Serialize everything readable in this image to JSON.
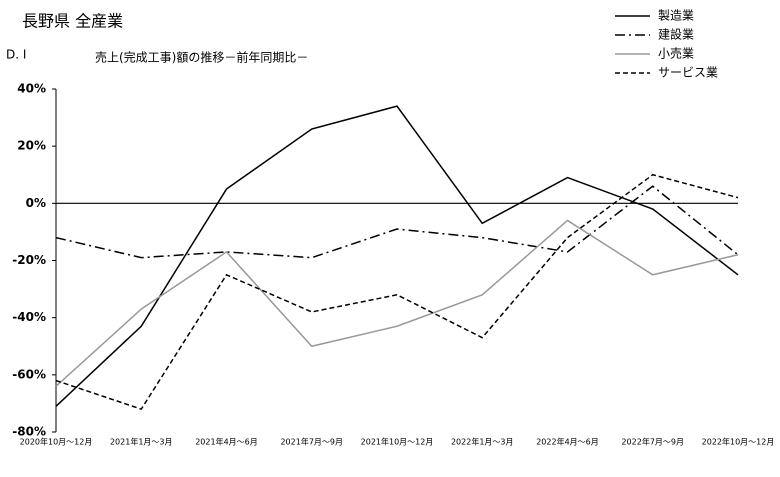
{
  "chart_data": {
    "type": "line",
    "title": "長野県 全産業",
    "y_label": "D. I",
    "subtitle": "売上(完成工事)額の推移－前年同期比－",
    "categories": [
      "2020年10月～12月",
      "2021年1月～3月",
      "2021年4月～6月",
      "2021年7月～9月",
      "2021年10月～12月",
      "2022年1月～3月",
      "2022年4月～6月",
      "2022年7月～9月",
      "2022年10月～12月"
    ],
    "series": [
      {
        "name": "製造業",
        "color": "#000000",
        "style": "solid",
        "values": [
          -71,
          -43,
          5,
          26,
          34,
          -7,
          9,
          -2,
          -25
        ]
      },
      {
        "name": "建設業",
        "color": "#000000",
        "style": "dashdot",
        "values": [
          -12,
          -19,
          -17,
          -19,
          -9,
          -12,
          -17,
          6,
          -18
        ]
      },
      {
        "name": "小売業",
        "color": "#999999",
        "style": "solid",
        "values": [
          -64,
          -37,
          -17,
          -50,
          -43,
          -32,
          -6,
          -25,
          -18
        ]
      },
      {
        "name": "サービス業",
        "color": "#000000",
        "style": "dashed",
        "values": [
          -62,
          -72,
          -25,
          -38,
          -32,
          -47,
          -12,
          10,
          2
        ]
      }
    ],
    "ylim": [
      -80,
      40
    ],
    "yticks": [
      {
        "value": -80,
        "label": "-80%"
      },
      {
        "value": -60,
        "label": "-60%"
      },
      {
        "value": -40,
        "label": "-40%"
      },
      {
        "value": -20,
        "label": "-20%"
      },
      {
        "value": 0,
        "label": "0%"
      },
      {
        "value": 20,
        "label": "20%"
      },
      {
        "value": 40,
        "label": "40%"
      }
    ],
    "zero_line": true,
    "legend": "top-right"
  }
}
